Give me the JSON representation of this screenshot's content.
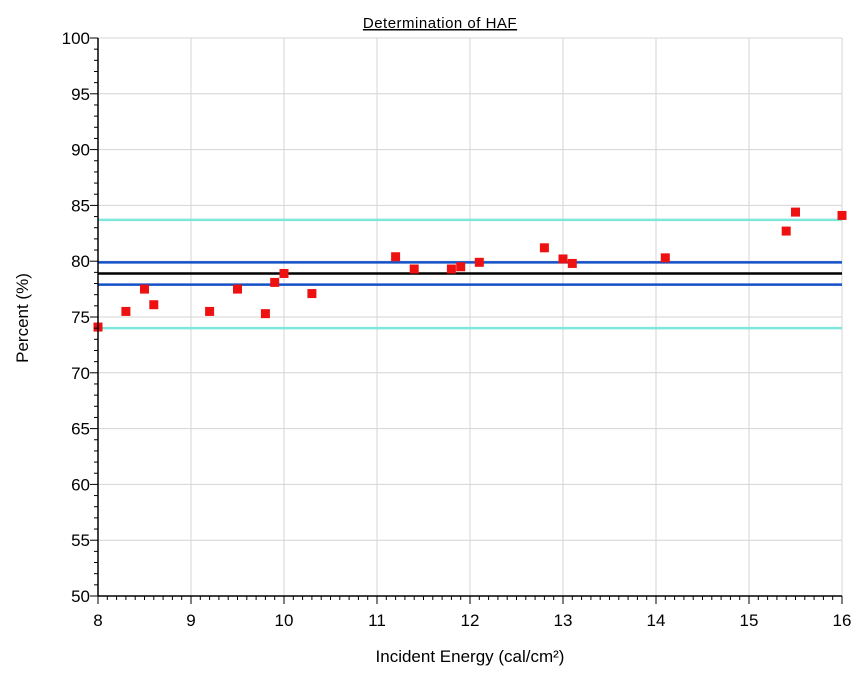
{
  "chart_data": {
    "type": "scatter",
    "title": "Determination of HAF",
    "xlabel": "Incident Energy (cal/cm²)",
    "ylabel": "Percent (%)",
    "xlim": [
      8,
      16
    ],
    "ylim": [
      50,
      100
    ],
    "x_ticks": [
      8,
      9,
      10,
      11,
      12,
      13,
      14,
      15,
      16
    ],
    "y_ticks": [
      50,
      55,
      60,
      65,
      70,
      75,
      80,
      85,
      90,
      95,
      100
    ],
    "x_tick_labels": [
      "8",
      "9",
      "10",
      "11",
      "12",
      "13",
      "14",
      "15",
      "16"
    ],
    "y_tick_labels": [
      "50",
      "55",
      "60",
      "65",
      "70",
      "75",
      "80",
      "85",
      "90",
      "95",
      "100"
    ],
    "grid": true,
    "legend": "none",
    "points_color": "#ee1111",
    "points": [
      {
        "x": 8.0,
        "y": 74.1
      },
      {
        "x": 8.3,
        "y": 75.5
      },
      {
        "x": 8.5,
        "y": 77.5
      },
      {
        "x": 8.6,
        "y": 76.1
      },
      {
        "x": 9.2,
        "y": 75.5
      },
      {
        "x": 9.5,
        "y": 77.5
      },
      {
        "x": 9.8,
        "y": 75.3
      },
      {
        "x": 9.9,
        "y": 78.1
      },
      {
        "x": 10.0,
        "y": 78.9
      },
      {
        "x": 10.3,
        "y": 77.1
      },
      {
        "x": 11.2,
        "y": 80.4
      },
      {
        "x": 11.4,
        "y": 79.3
      },
      {
        "x": 11.8,
        "y": 79.3
      },
      {
        "x": 11.9,
        "y": 79.5
      },
      {
        "x": 12.1,
        "y": 79.9
      },
      {
        "x": 12.8,
        "y": 81.2
      },
      {
        "x": 13.0,
        "y": 80.2
      },
      {
        "x": 13.1,
        "y": 79.8
      },
      {
        "x": 14.1,
        "y": 80.3
      },
      {
        "x": 15.4,
        "y": 82.7
      },
      {
        "x": 15.5,
        "y": 84.4
      },
      {
        "x": 16.0,
        "y": 84.1
      }
    ],
    "reference_lines": [
      {
        "y": 83.7,
        "color": "#7fe6dc",
        "width": 2.5
      },
      {
        "y": 79.9,
        "color": "#1450c8",
        "width": 2.5
      },
      {
        "y": 78.9,
        "color": "#000000",
        "width": 2.5
      },
      {
        "y": 77.9,
        "color": "#1450c8",
        "width": 2.5
      },
      {
        "y": 74.0,
        "color": "#7fe6dc",
        "width": 2.5
      }
    ]
  }
}
